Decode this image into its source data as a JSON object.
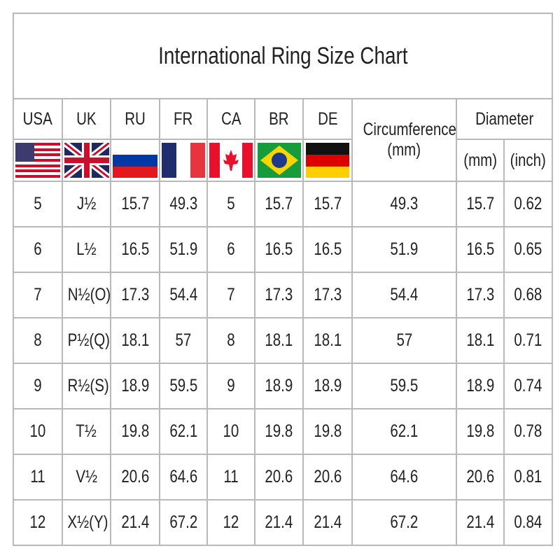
{
  "title": "International Ring Size Chart",
  "headers": {
    "usa": "USA",
    "uk": "UK",
    "ru": "RU",
    "fr": "FR",
    "ca": "CA",
    "br": "BR",
    "de": "DE",
    "circumference": "Circumference",
    "circumference_unit": "(mm)",
    "diameter": "Diameter",
    "diameter_mm": "(mm)",
    "diameter_inch": "(inch)"
  },
  "flags": [
    "usa-flag",
    "uk-flag",
    "russia-flag",
    "france-flag",
    "canada-flag",
    "brazil-flag",
    "germany-flag"
  ],
  "rows": [
    [
      "5",
      "J½",
      "15.7",
      "49.3",
      "5",
      "15.7",
      "15.7",
      "49.3",
      "15.7",
      "0.62"
    ],
    [
      "6",
      "L½",
      "16.5",
      "51.9",
      "6",
      "16.5",
      "16.5",
      "51.9",
      "16.5",
      "0.65"
    ],
    [
      "7",
      "N½(O)",
      "17.3",
      "54.4",
      "7",
      "17.3",
      "17.3",
      "54.4",
      "17.3",
      "0.68"
    ],
    [
      "8",
      "P½(Q)",
      "18.1",
      "57",
      "8",
      "18.1",
      "18.1",
      "57",
      "18.1",
      "0.71"
    ],
    [
      "9",
      "R½(S)",
      "18.9",
      "59.5",
      "9",
      "18.9",
      "18.9",
      "59.5",
      "18.9",
      "0.74"
    ],
    [
      "10",
      "T½",
      "19.8",
      "62.1",
      "10",
      "19.8",
      "19.8",
      "62.1",
      "19.8",
      "0.78"
    ],
    [
      "11",
      "V½",
      "20.6",
      "64.6",
      "11",
      "20.6",
      "20.6",
      "64.6",
      "20.6",
      "0.81"
    ],
    [
      "12",
      "X½(Y)",
      "21.4",
      "67.2",
      "12",
      "21.4",
      "21.4",
      "67.2",
      "21.4",
      "0.84"
    ]
  ]
}
